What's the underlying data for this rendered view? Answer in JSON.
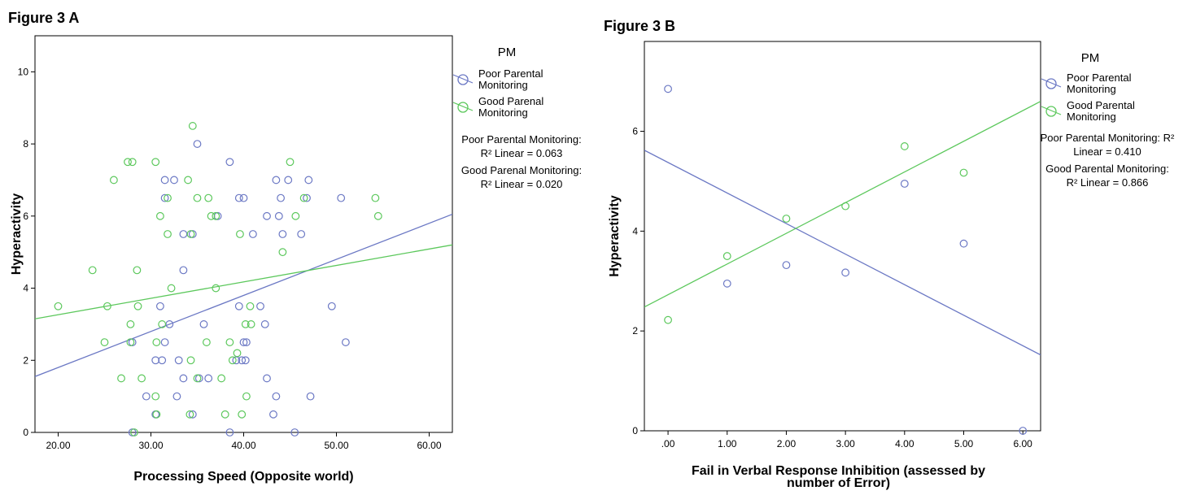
{
  "chart_data": [
    {
      "type": "scatter",
      "title": "Figure 3 A",
      "xlabel": "Processing Speed (Opposite world)",
      "ylabel": "Hyperactivity",
      "xlim": [
        17.5,
        62.5
      ],
      "ylim": [
        0,
        11
      ],
      "xticks": [
        20,
        30,
        40,
        50,
        60
      ],
      "xtick_labels": [
        "20.00",
        "30.00",
        "40.00",
        "50.00",
        "60.00"
      ],
      "yticks": [
        0,
        2,
        4,
        6,
        8,
        10
      ],
      "ytick_labels": [
        "0",
        "2",
        "4",
        "6",
        "8",
        "10"
      ],
      "grid": false,
      "legend_title": "PM",
      "legend_position": "right",
      "series": [
        {
          "name": "Poor Parental Monitoring",
          "color": "#6b78c4",
          "points": [
            [
              35,
              8
            ],
            [
              38.5,
              7.5
            ],
            [
              31.5,
              7
            ],
            [
              32.5,
              7
            ],
            [
              43.5,
              7
            ],
            [
              44.8,
              7
            ],
            [
              47,
              7
            ],
            [
              31.5,
              6.5
            ],
            [
              39.5,
              6.5
            ],
            [
              40,
              6.5
            ],
            [
              44,
              6.5
            ],
            [
              46.8,
              6.5
            ],
            [
              50.5,
              6.5
            ],
            [
              37.2,
              6
            ],
            [
              42.5,
              6
            ],
            [
              43.8,
              6
            ],
            [
              33.5,
              5.5
            ],
            [
              34.5,
              5.5
            ],
            [
              41,
              5.5
            ],
            [
              44.2,
              5.5
            ],
            [
              46.2,
              5.5
            ],
            [
              33.5,
              4.5
            ],
            [
              31,
              3.5
            ],
            [
              39.5,
              3.5
            ],
            [
              41.8,
              3.5
            ],
            [
              49.5,
              3.5
            ],
            [
              32,
              3
            ],
            [
              35.7,
              3
            ],
            [
              42.3,
              3
            ],
            [
              28,
              2.5
            ],
            [
              31.5,
              2.5
            ],
            [
              40,
              2.5
            ],
            [
              40.3,
              2.5
            ],
            [
              51,
              2.5
            ],
            [
              30.5,
              2
            ],
            [
              31.2,
              2
            ],
            [
              33,
              2
            ],
            [
              39.2,
              2
            ],
            [
              39.8,
              2
            ],
            [
              40.2,
              2
            ],
            [
              33.5,
              1.5
            ],
            [
              35.2,
              1.5
            ],
            [
              36.2,
              1.5
            ],
            [
              42.5,
              1.5
            ],
            [
              29.5,
              1
            ],
            [
              32.8,
              1
            ],
            [
              43.5,
              1
            ],
            [
              47.2,
              1
            ],
            [
              30.5,
              0.5
            ],
            [
              34.5,
              0.5
            ],
            [
              43.2,
              0.5
            ],
            [
              28,
              0
            ],
            [
              38.5,
              0
            ],
            [
              45.5,
              0
            ]
          ],
          "fit_line": {
            "x": [
              17.5,
              62.5
            ],
            "y": [
              1.55,
              6.05
            ]
          },
          "r2_label": "Poor Parental Monitoring:",
          "r2_value": "R² Linear = 0.063"
        },
        {
          "name": "Good Parenal Monitoring",
          "color": "#5cc85c",
          "points": [
            [
              34.5,
              8.5
            ],
            [
              27.5,
              7.5
            ],
            [
              28,
              7.5
            ],
            [
              30.5,
              7.5
            ],
            [
              45,
              7.5
            ],
            [
              26,
              7
            ],
            [
              34,
              7
            ],
            [
              31.8,
              6.5
            ],
            [
              35,
              6.5
            ],
            [
              36.2,
              6.5
            ],
            [
              46.5,
              6.5
            ],
            [
              54.2,
              6.5
            ],
            [
              31,
              6
            ],
            [
              36.5,
              6
            ],
            [
              37,
              6
            ],
            [
              45.6,
              6
            ],
            [
              54.5,
              6
            ],
            [
              31.8,
              5.5
            ],
            [
              34.3,
              5.5
            ],
            [
              39.6,
              5.5
            ],
            [
              44.2,
              5
            ],
            [
              23.7,
              4.5
            ],
            [
              28.5,
              4.5
            ],
            [
              32.2,
              4
            ],
            [
              37,
              4
            ],
            [
              20,
              3.5
            ],
            [
              25.3,
              3.5
            ],
            [
              28.6,
              3.5
            ],
            [
              40.7,
              3.5
            ],
            [
              27.8,
              3
            ],
            [
              31.2,
              3
            ],
            [
              40.2,
              3
            ],
            [
              40.8,
              3
            ],
            [
              25,
              2.5
            ],
            [
              27.8,
              2.5
            ],
            [
              30.6,
              2.5
            ],
            [
              36,
              2.5
            ],
            [
              38.5,
              2.5
            ],
            [
              34.3,
              2
            ],
            [
              38.8,
              2
            ],
            [
              39.3,
              2.2
            ],
            [
              26.8,
              1.5
            ],
            [
              29,
              1.5
            ],
            [
              35,
              1.5
            ],
            [
              37.6,
              1.5
            ],
            [
              30.5,
              1
            ],
            [
              40.3,
              1
            ],
            [
              30.6,
              0.5
            ],
            [
              34.2,
              0.5
            ],
            [
              38,
              0.5
            ],
            [
              39.8,
              0.5
            ],
            [
              28.2,
              0
            ]
          ],
          "fit_line": {
            "x": [
              17.5,
              62.5
            ],
            "y": [
              3.15,
              5.2
            ]
          },
          "r2_label": "Good Parenal Monitoring:",
          "r2_value": "R² Linear = 0.020"
        }
      ]
    },
    {
      "type": "scatter",
      "title": "Figure 3 B",
      "xlabel": "Fail in Verbal Response Inhibition (assessed by number of Error)",
      "xlabel_lines": [
        "Fail in Verbal Response Inhibition (assessed by",
        "number of Error)"
      ],
      "ylabel": "Hyperactivity",
      "xlim": [
        -0.4,
        6.3
      ],
      "ylim": [
        0,
        7.8
      ],
      "xticks": [
        0,
        1,
        2,
        3,
        4,
        5,
        6
      ],
      "xtick_labels": [
        ".00",
        "1.00",
        "2.00",
        "3.00",
        "4.00",
        "5.00",
        "6.00"
      ],
      "yticks": [
        0,
        2,
        4,
        6
      ],
      "ytick_labels": [
        "0",
        "2",
        "4",
        "6"
      ],
      "grid": false,
      "legend_title": "PM",
      "legend_position": "right",
      "series": [
        {
          "name": "Poor Parental Monitoring",
          "color": "#6b78c4",
          "points": [
            [
              0,
              6.85
            ],
            [
              1,
              2.95
            ],
            [
              2,
              3.32
            ],
            [
              3,
              3.17
            ],
            [
              4,
              4.95
            ],
            [
              5,
              3.75
            ],
            [
              6,
              0
            ]
          ],
          "fit_line": {
            "x": [
              -0.4,
              6.3
            ],
            "y": [
              5.62,
              1.52
            ]
          },
          "r2_label": "Poor Parental Monitoring: R²",
          "r2_value": "Linear = 0.410"
        },
        {
          "name": "Good Parental Monitoring",
          "color": "#5cc85c",
          "points": [
            [
              0,
              2.22
            ],
            [
              1,
              3.5
            ],
            [
              2,
              4.25
            ],
            [
              3,
              4.5
            ],
            [
              4,
              5.7
            ],
            [
              5,
              5.17
            ]
          ],
          "fit_line": {
            "x": [
              -0.4,
              6.3
            ],
            "y": [
              2.48,
              6.6
            ]
          },
          "r2_label": "Good Parental Monitoring:",
          "r2_value": "R² Linear = 0.866"
        }
      ]
    }
  ],
  "legend_items": {
    "a": [
      [
        "Poor Parental",
        "Monitoring"
      ],
      [
        "Good Parenal",
        "Monitoring"
      ]
    ],
    "b": [
      [
        "Poor Parental",
        "Monitoring"
      ],
      [
        "Good Parental",
        "Monitoring"
      ]
    ]
  }
}
